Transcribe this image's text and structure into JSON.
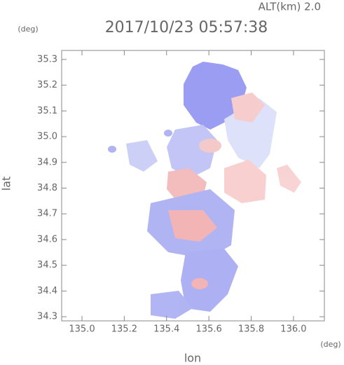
{
  "chart_data": {
    "type": "field",
    "title": "2017/10/23 05:57:38",
    "annotation": "ALT(km)  2.0",
    "x_label": "lon",
    "y_label": "lat",
    "x_unit": "(deg)",
    "y_unit": "(deg)",
    "xlim": [
      134.904,
      136.146
    ],
    "ylim": [
      34.284,
      35.335
    ],
    "xticks": [
      {
        "value": 135,
        "label": "135.0"
      },
      135.2,
      135.4,
      135.6,
      135.8,
      {
        "value": 136,
        "label": "136.0"
      }
    ],
    "yticks": [
      34.3,
      34.4,
      34.5,
      34.6,
      34.7,
      34.8,
      34.9,
      {
        "value": 35,
        "label": "35.0"
      },
      35.1,
      35.2,
      35.3
    ]
  }
}
